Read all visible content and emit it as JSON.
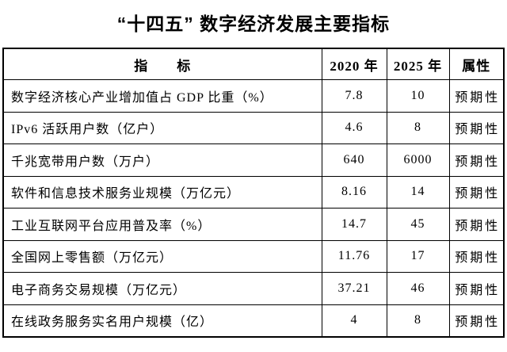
{
  "title": "“十四五” 数字经济发展主要指标",
  "table": {
    "headers": {
      "indicator": "指　　标",
      "y2020": "2020 年",
      "y2025": "2025 年",
      "attribute": "属性"
    },
    "rows": [
      {
        "indicator": "数字经济核心产业增加值占 GDP 比重（%）",
        "y2020": "7.8",
        "y2025": "10",
        "attribute": "预期性"
      },
      {
        "indicator": "IPv6 活跃用户数（亿户）",
        "y2020": "4.6",
        "y2025": "8",
        "attribute": "预期性"
      },
      {
        "indicator": "千兆宽带用户数（万户）",
        "y2020": "640",
        "y2025": "6000",
        "attribute": "预期性"
      },
      {
        "indicator": "软件和信息技术服务业规模（万亿元）",
        "y2020": "8.16",
        "y2025": "14",
        "attribute": "预期性"
      },
      {
        "indicator": "工业互联网平台应用普及率（%）",
        "y2020": "14.7",
        "y2025": "45",
        "attribute": "预期性"
      },
      {
        "indicator": "全国网上零售额（万亿元）",
        "y2020": "11.76",
        "y2025": "17",
        "attribute": "预期性"
      },
      {
        "indicator": "电子商务交易规模（万亿元）",
        "y2020": "37.21",
        "y2025": "46",
        "attribute": "预期性"
      },
      {
        "indicator": "在线政务服务实名用户规模（亿）",
        "y2020": "4",
        "y2025": "8",
        "attribute": "预期性"
      }
    ]
  },
  "chart_data": {
    "type": "table",
    "title": "“十四五”数字经济发展主要指标",
    "columns": [
      "指标",
      "2020 年",
      "2025 年",
      "属性"
    ],
    "categories": [
      "数字经济核心产业增加值占GDP比重（%）",
      "IPv6活跃用户数（亿户）",
      "千兆宽带用户数（万户）",
      "软件和信息技术服务业规模（万亿元）",
      "工业互联网平台应用普及率（%）",
      "全国网上零售额（万亿元）",
      "电子商务交易规模（万亿元）",
      "在线政务服务实名用户规模（亿）"
    ],
    "series": [
      {
        "name": "2020 年",
        "values": [
          7.8,
          4.6,
          640,
          8.16,
          14.7,
          11.76,
          37.21,
          4
        ]
      },
      {
        "name": "2025 年",
        "values": [
          10,
          8,
          6000,
          14,
          45,
          17,
          46,
          8
        ]
      }
    ],
    "attributes": [
      "预期性",
      "预期性",
      "预期性",
      "预期性",
      "预期性",
      "预期性",
      "预期性",
      "预期性"
    ]
  },
  "colors": {
    "text": "#000000",
    "border": "#000000",
    "background": "#ffffff"
  }
}
